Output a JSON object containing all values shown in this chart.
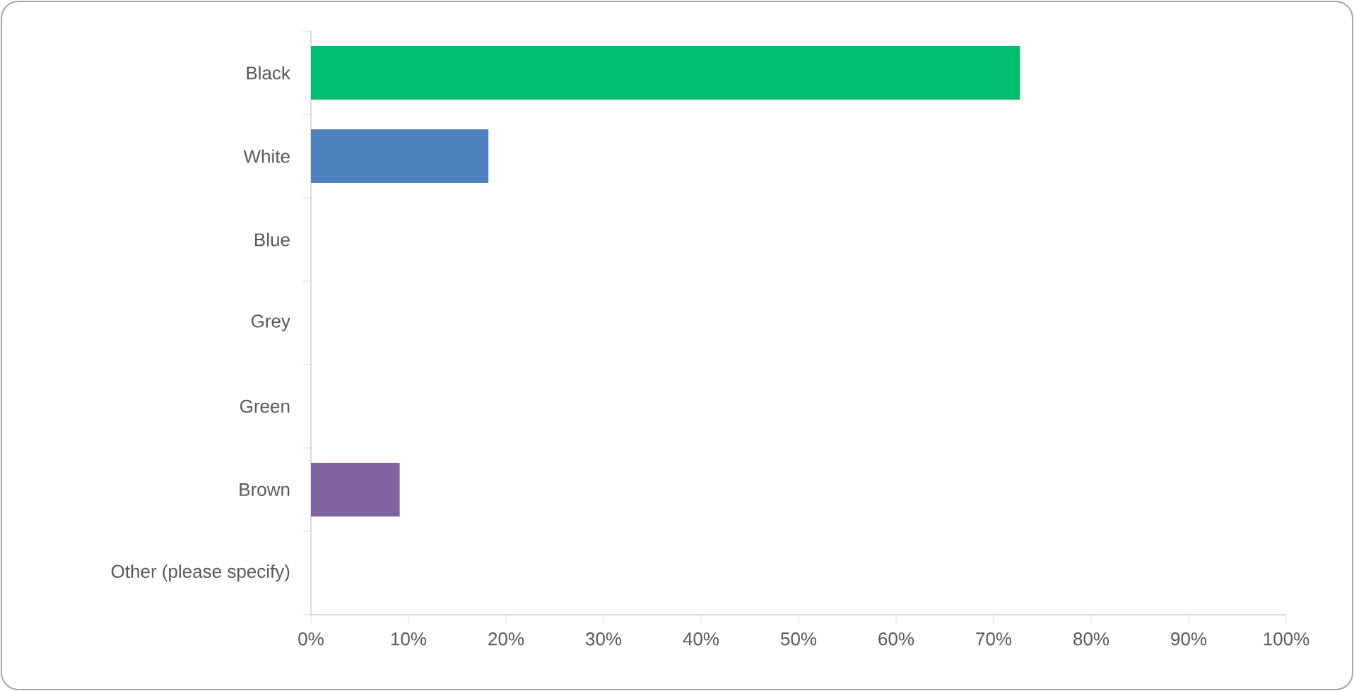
{
  "chart_data": {
    "type": "bar",
    "orientation": "horizontal",
    "categories": [
      "Black",
      "White",
      "Blue",
      "Grey",
      "Green",
      "Brown",
      "Other (please specify)"
    ],
    "values": [
      72.7,
      18.2,
      0,
      0,
      0,
      9.1,
      0
    ],
    "colors": [
      "#00bf6f",
      "#4f81bd",
      "#4f81bd",
      "#4f81bd",
      "#4f81bd",
      "#8064a2",
      "#4f81bd"
    ],
    "xlim": [
      0,
      100
    ],
    "xticks": [
      {
        "value": 0,
        "label": "0%"
      },
      {
        "value": 10,
        "label": "10%"
      },
      {
        "value": 20,
        "label": "20%"
      },
      {
        "value": 30,
        "label": "30%"
      },
      {
        "value": 40,
        "label": "40%"
      },
      {
        "value": 50,
        "label": "50%"
      },
      {
        "value": 60,
        "label": "60%"
      },
      {
        "value": 70,
        "label": "70%"
      },
      {
        "value": 80,
        "label": "80%"
      },
      {
        "value": 90,
        "label": "90%"
      },
      {
        "value": 100,
        "label": "100%"
      }
    ],
    "grid": false
  }
}
